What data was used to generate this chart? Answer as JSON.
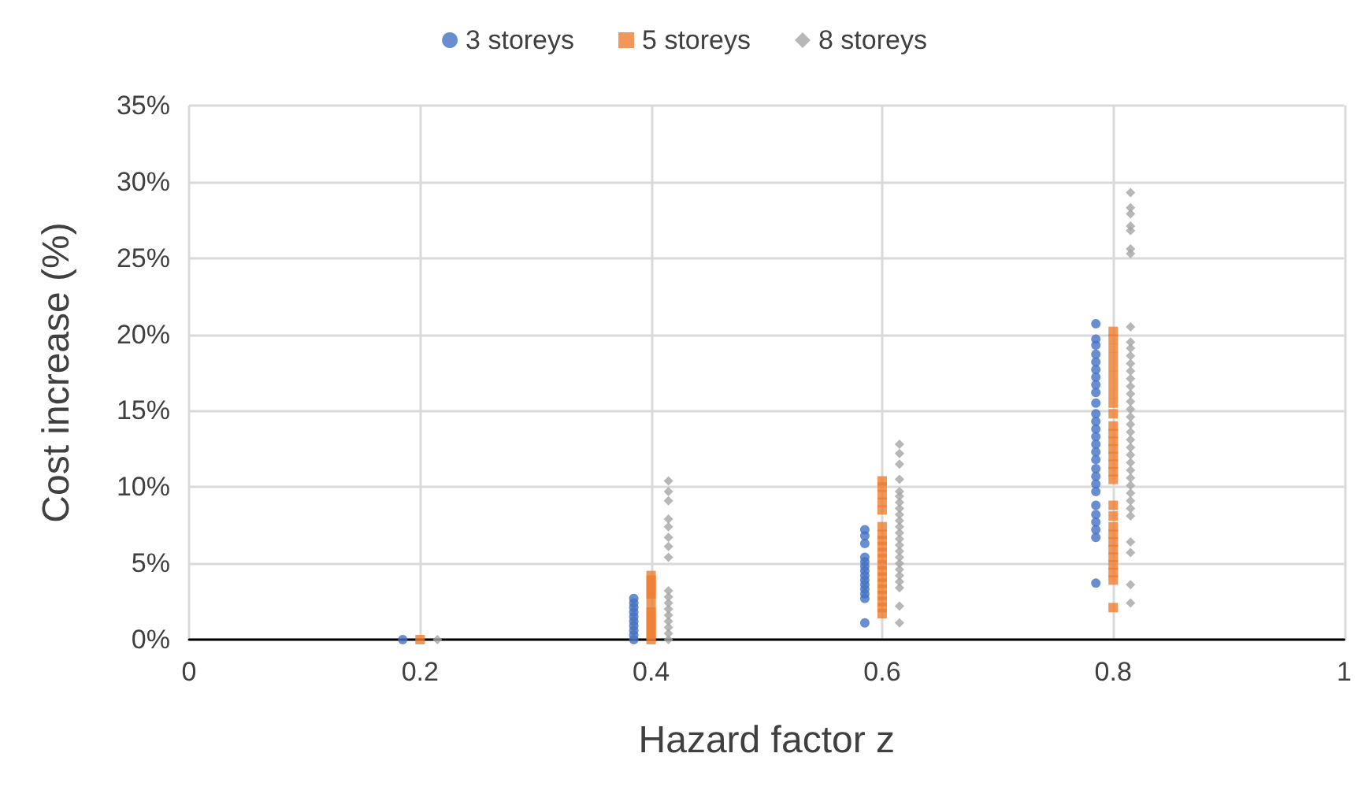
{
  "chart_data": {
    "type": "scatter",
    "xlabel": "Hazard factor z",
    "ylabel": "Cost increase (%)",
    "xlim": [
      0,
      1
    ],
    "ylim": [
      0,
      35
    ],
    "xticks": [
      0,
      0.2,
      0.4,
      0.6,
      0.8,
      1
    ],
    "yticks": [
      {
        "value": 0,
        "label": "0%"
      },
      {
        "value": 5,
        "label": "5%"
      },
      {
        "value": 10,
        "label": "10%"
      },
      {
        "value": 15,
        "label": "15%"
      },
      {
        "value": 20,
        "label": "20%"
      },
      {
        "value": 25,
        "label": "25%"
      },
      {
        "value": 30,
        "label": "30%"
      },
      {
        "value": 35,
        "label": "35%"
      }
    ],
    "grid": true,
    "legend": "top",
    "series": [
      {
        "name": "3 storeys",
        "color": "#4472c4",
        "marker": "circle",
        "x": [
          0.185,
          0.385,
          0.385,
          0.385,
          0.385,
          0.385,
          0.385,
          0.385,
          0.385,
          0.385,
          0.385,
          0.585,
          0.585,
          0.585,
          0.585,
          0.585,
          0.585,
          0.585,
          0.585,
          0.585,
          0.585,
          0.585,
          0.585,
          0.585,
          0.585,
          0.785,
          0.785,
          0.785,
          0.785,
          0.785,
          0.785,
          0.785,
          0.785,
          0.785,
          0.785,
          0.785,
          0.785,
          0.785,
          0.785,
          0.785,
          0.785,
          0.785,
          0.785,
          0.785,
          0.785,
          0.785,
          0.785,
          0.785,
          0.785,
          0.785,
          0.785,
          0.785
        ],
        "values": [
          0,
          0,
          0.3,
          0.6,
          0.9,
          1.2,
          1.5,
          1.8,
          2.1,
          2.4,
          2.7,
          1.1,
          2.7,
          3.0,
          3.3,
          3.6,
          3.9,
          4.2,
          4.5,
          4.8,
          5.1,
          5.4,
          6.3,
          6.8,
          7.2,
          3.7,
          6.7,
          7.2,
          7.7,
          8.2,
          8.8,
          9.7,
          10.2,
          10.7,
          11.2,
          11.8,
          12.3,
          12.8,
          13.3,
          13.8,
          14.3,
          14.8,
          15.5,
          16.2,
          16.7,
          17.2,
          17.7,
          18.2,
          18.7,
          19.3,
          19.7,
          20.7
        ]
      },
      {
        "name": "5 storeys",
        "color": "#ed7d31",
        "marker": "square",
        "x": [
          0.2,
          0.4,
          0.4,
          0.4,
          0.4,
          0.4,
          0.4,
          0.4,
          0.4,
          0.4,
          0.4,
          0.4,
          0.4,
          0.4,
          0.4,
          0.6,
          0.6,
          0.6,
          0.6,
          0.6,
          0.6,
          0.6,
          0.6,
          0.6,
          0.6,
          0.6,
          0.6,
          0.6,
          0.6,
          0.6,
          0.6,
          0.6,
          0.6,
          0.6,
          0.6,
          0.8,
          0.8,
          0.8,
          0.8,
          0.8,
          0.8,
          0.8,
          0.8,
          0.8,
          0.8,
          0.8,
          0.8,
          0.8,
          0.8,
          0.8,
          0.8,
          0.8,
          0.8,
          0.8,
          0.8,
          0.8,
          0.8,
          0.8,
          0.8,
          0.8,
          0.8,
          0.8,
          0.8,
          0.8
        ],
        "values": [
          0,
          0,
          0.3,
          0.6,
          0.9,
          1.2,
          1.5,
          1.8,
          2.1,
          2.7,
          3.0,
          3.3,
          3.6,
          3.9,
          4.2,
          1.7,
          2.1,
          2.5,
          2.9,
          3.3,
          3.7,
          4.1,
          4.5,
          4.9,
          5.3,
          5.7,
          6.1,
          6.5,
          6.9,
          7.4,
          8.5,
          9.0,
          9.5,
          10.0,
          10.4,
          2.1,
          3.9,
          4.4,
          4.9,
          5.4,
          5.9,
          6.4,
          6.9,
          7.4,
          8.1,
          8.8,
          10.5,
          11.0,
          11.5,
          12.0,
          12.5,
          13.0,
          13.5,
          14.0,
          14.8,
          15.5,
          16.1,
          16.7,
          17.3,
          17.9,
          18.5,
          19.1,
          19.7,
          20.2
        ]
      },
      {
        "name": "8 storeys",
        "color": "#a5a5a5",
        "marker": "diamond",
        "x": [
          0.215,
          0.415,
          0.415,
          0.415,
          0.415,
          0.415,
          0.415,
          0.415,
          0.415,
          0.415,
          0.415,
          0.415,
          0.415,
          0.415,
          0.415,
          0.415,
          0.415,
          0.415,
          0.615,
          0.615,
          0.615,
          0.615,
          0.615,
          0.615,
          0.615,
          0.615,
          0.615,
          0.615,
          0.615,
          0.615,
          0.615,
          0.615,
          0.615,
          0.615,
          0.615,
          0.615,
          0.615,
          0.615,
          0.615,
          0.615,
          0.615,
          0.815,
          0.815,
          0.815,
          0.815,
          0.815,
          0.815,
          0.815,
          0.815,
          0.815,
          0.815,
          0.815,
          0.815,
          0.815,
          0.815,
          0.815,
          0.815,
          0.815,
          0.815,
          0.815,
          0.815,
          0.815,
          0.815,
          0.815,
          0.815,
          0.815,
          0.815,
          0.815,
          0.815,
          0.815,
          0.815,
          0.815,
          0.815,
          0.815,
          0.815,
          0.815,
          0.815
        ],
        "values": [
          0,
          0,
          0.4,
          0.8,
          1.2,
          1.6,
          2.0,
          2.4,
          2.8,
          3.2,
          5.4,
          6.1,
          6.7,
          7.4,
          7.9,
          9.1,
          9.7,
          10.4,
          1.1,
          2.2,
          3.4,
          3.8,
          4.2,
          4.6,
          5.0,
          5.4,
          5.8,
          6.2,
          6.6,
          7.0,
          7.4,
          7.8,
          8.2,
          8.6,
          9.0,
          9.4,
          9.7,
          10.5,
          11.5,
          12.2,
          12.8,
          2.4,
          3.6,
          5.7,
          6.4,
          8.1,
          8.6,
          9.1,
          9.6,
          10.1,
          10.6,
          11.1,
          11.6,
          12.1,
          12.6,
          13.1,
          13.6,
          14.1,
          14.6,
          15.1,
          15.6,
          16.1,
          16.6,
          17.1,
          17.6,
          18.1,
          18.6,
          19.1,
          19.5,
          20.5,
          25.3,
          25.6,
          26.8,
          27.1,
          27.9,
          28.3,
          29.3
        ]
      }
    ]
  }
}
